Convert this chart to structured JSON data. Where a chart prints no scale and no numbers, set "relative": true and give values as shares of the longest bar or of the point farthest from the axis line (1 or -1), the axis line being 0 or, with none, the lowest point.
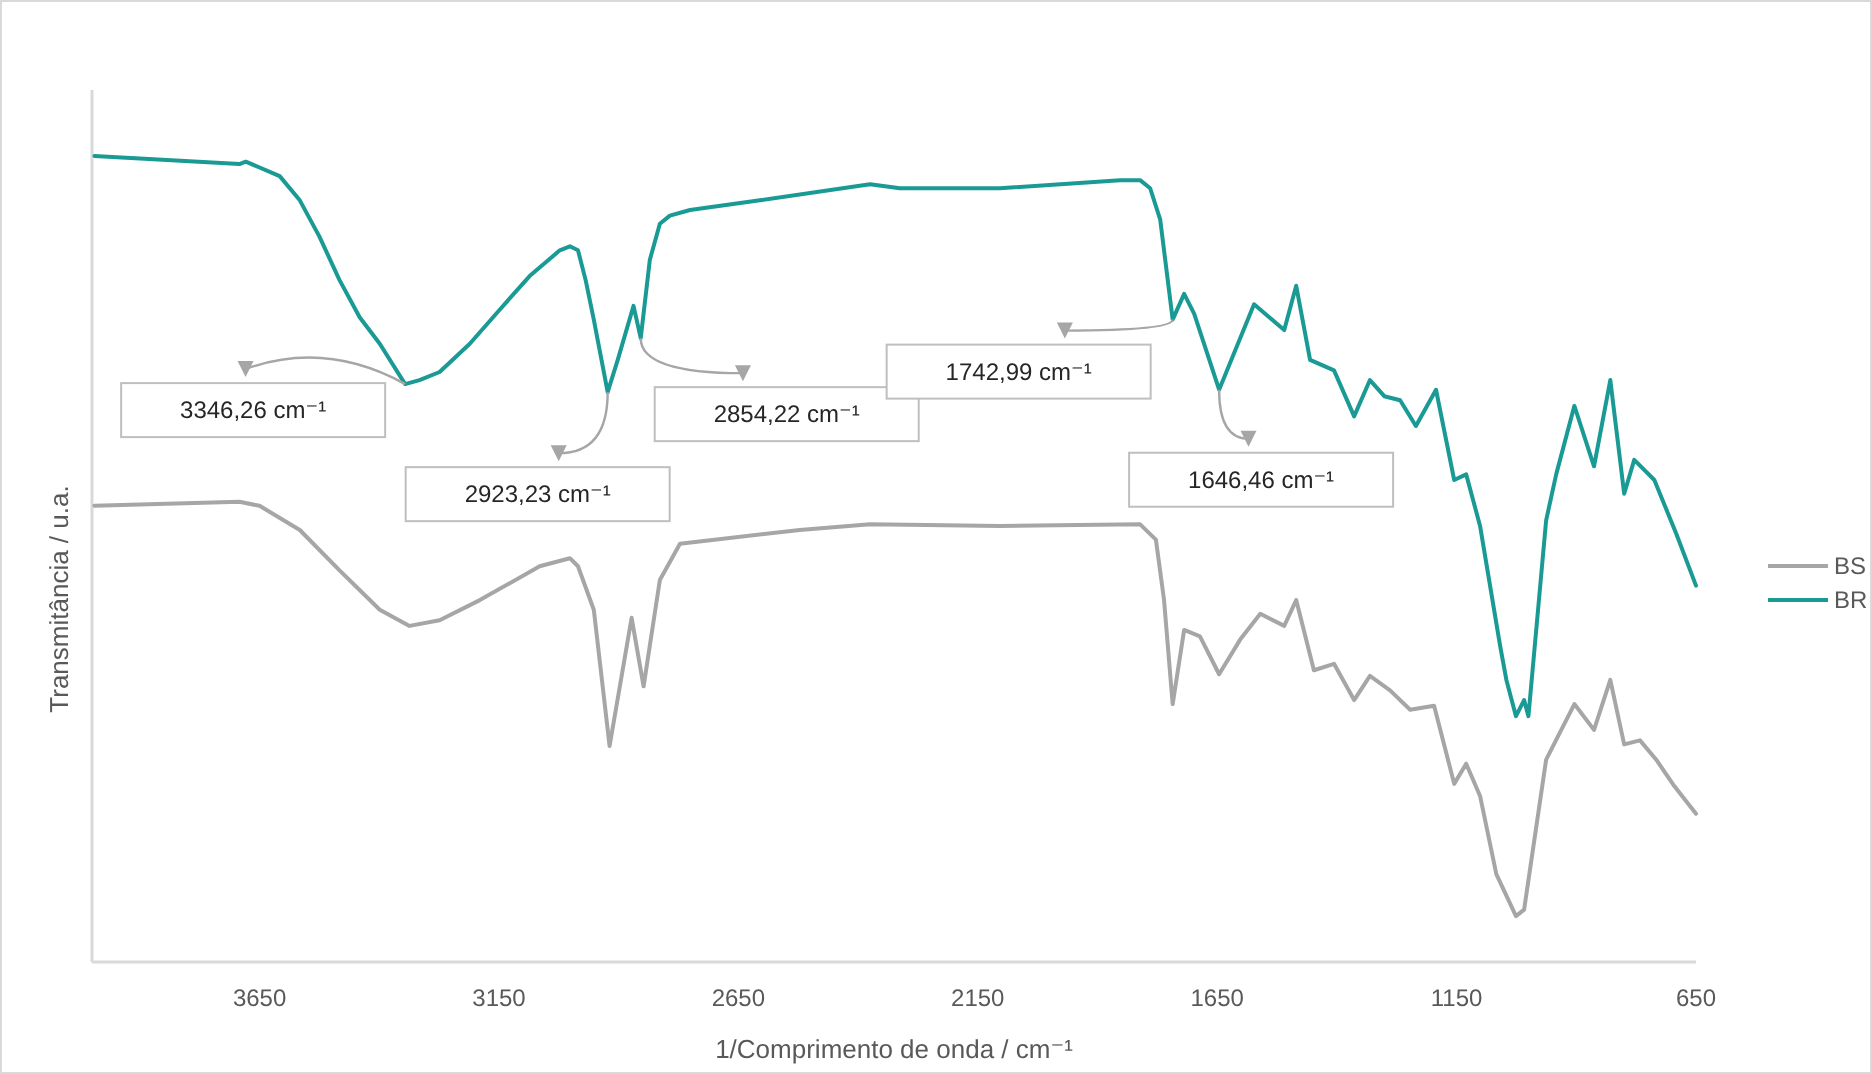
{
  "chart_data": {
    "type": "line",
    "relative": true,
    "xlabel": "1/Comprimento de onda / cm⁻¹",
    "ylabel": "Transmitância / u.a.",
    "xlim": [
      4000,
      650
    ],
    "xticks": [
      3650,
      3150,
      2650,
      2150,
      1650,
      1150,
      650
    ],
    "legend": "right",
    "series": [
      {
        "name": "BS",
        "color": "#a6a6a6",
        "x": [
          3995,
          3692,
          3650,
          3566,
          3483,
          3399,
          3337,
          3274,
          3190,
          3065,
          3002,
          2985,
          2952,
          2919,
          2873,
          2848,
          2814,
          2772,
          2522,
          2375,
          2104,
          1811,
          1778,
          1761,
          1743,
          1719,
          1686,
          1646,
          1602,
          1560,
          1510,
          1485,
          1448,
          1406,
          1364,
          1331,
          1289,
          1247,
          1197,
          1155,
          1130,
          1101,
          1067,
          1026,
          1009,
          963,
          904,
          863,
          829,
          800,
          767,
          733,
          695,
          650
        ],
        "values": [
          0.566,
          0.571,
          0.566,
          0.536,
          0.486,
          0.437,
          0.417,
          0.424,
          0.449,
          0.491,
          0.501,
          0.491,
          0.437,
          0.268,
          0.427,
          0.342,
          0.474,
          0.519,
          0.536,
          0.543,
          0.541,
          0.543,
          0.524,
          0.449,
          0.32,
          0.412,
          0.404,
          0.357,
          0.4,
          0.432,
          0.417,
          0.449,
          0.362,
          0.37,
          0.325,
          0.355,
          0.337,
          0.313,
          0.318,
          0.221,
          0.246,
          0.206,
          0.109,
          0.057,
          0.065,
          0.251,
          0.32,
          0.288,
          0.35,
          0.27,
          0.275,
          0.251,
          0.218,
          0.184
        ]
      },
      {
        "name": "BR",
        "color": "#1a9a94",
        "x": [
          3995,
          3692,
          3679,
          3608,
          3566,
          3525,
          3483,
          3441,
          3399,
          3346,
          3316,
          3274,
          3211,
          3149,
          3086,
          3023,
          3002,
          2985,
          2969,
          2952,
          2923,
          2902,
          2869,
          2854,
          2835,
          2814,
          2793,
          2751,
          2605,
          2375,
          2313,
          2104,
          1853,
          1811,
          1790,
          1769,
          1743,
          1719,
          1698,
          1646,
          1573,
          1510,
          1485,
          1456,
          1406,
          1364,
          1331,
          1301,
          1268,
          1235,
          1193,
          1155,
          1130,
          1101,
          1059,
          1046,
          1026,
          1009,
          1000,
          963,
          942,
          904,
          863,
          829,
          800,
          779,
          737,
          691,
          650
        ],
        "values": [
          1.0,
          0.99,
          0.993,
          0.975,
          0.945,
          0.9,
          0.846,
          0.8,
          0.767,
          0.717,
          0.722,
          0.732,
          0.767,
          0.809,
          0.851,
          0.883,
          0.888,
          0.883,
          0.846,
          0.797,
          0.707,
          0.747,
          0.814,
          0.774,
          0.871,
          0.916,
          0.926,
          0.933,
          0.945,
          0.965,
          0.96,
          0.96,
          0.97,
          0.97,
          0.96,
          0.921,
          0.797,
          0.829,
          0.804,
          0.71,
          0.816,
          0.784,
          0.839,
          0.747,
          0.734,
          0.677,
          0.722,
          0.702,
          0.697,
          0.665,
          0.71,
          0.598,
          0.605,
          0.541,
          0.392,
          0.35,
          0.305,
          0.325,
          0.305,
          0.548,
          0.605,
          0.69,
          0.615,
          0.722,
          0.581,
          0.623,
          0.598,
          0.531,
          0.467
        ]
      }
    ],
    "annotations": [
      {
        "text": "3346,26 cm⁻¹",
        "x": 3346,
        "y": 0.717
      },
      {
        "text": "2923,23 cm⁻¹",
        "x": 2923,
        "y": 0.707
      },
      {
        "text": "2854,22 cm⁻¹",
        "x": 2854,
        "y": 0.774
      },
      {
        "text": "1742,99 cm⁻¹",
        "x": 1743,
        "y": 0.797
      },
      {
        "text": "1646,46 cm⁻¹",
        "x": 1646,
        "y": 0.71
      }
    ]
  }
}
